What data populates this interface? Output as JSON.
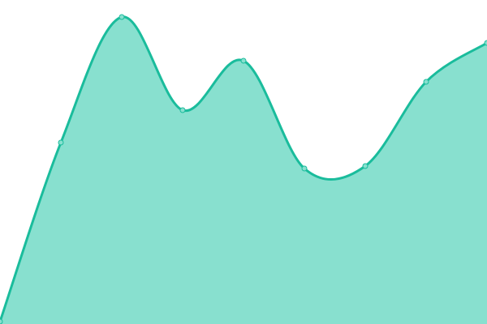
{
  "chart_data": {
    "type": "area",
    "title": "",
    "xlabel": "",
    "ylabel": "",
    "x": [
      0,
      1,
      2,
      3,
      4,
      5,
      6,
      7,
      8
    ],
    "values": [
      3,
      224,
      379,
      264,
      325,
      192,
      195,
      299,
      347
    ],
    "ylim": [
      0,
      400
    ],
    "grid": false,
    "axes_visible": false,
    "curve": "smooth",
    "colors": {
      "line": "#1abc9c",
      "fill": "#88e0cf",
      "marker_fill": "#88e0cf"
    }
  }
}
